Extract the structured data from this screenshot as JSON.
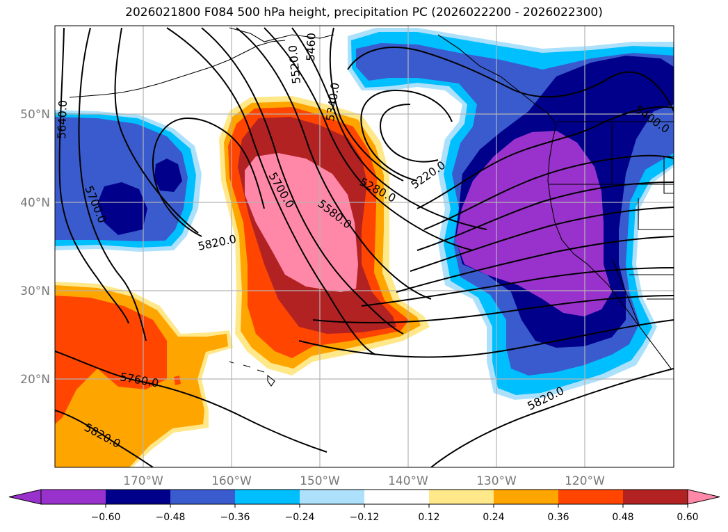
{
  "title": "2026021800 F084 500 hPa height, precipitation PC (2026022200 - 2026022300)",
  "lat_labels": [
    "50°N",
    "40°N",
    "30°N",
    "20°N"
  ],
  "lon_labels": [
    "170°W",
    "160°W",
    "150°W",
    "140°W",
    "130°W",
    "120°W"
  ],
  "contour_labels": [
    "5640.0",
    "5700.0",
    "5820.0",
    "5700.0",
    "5580.0",
    "5280.0",
    "5220.0",
    "5340.0",
    "5460",
    "5520.0",
    "5400.0",
    "5760.0",
    "5820.0",
    "5820.0"
  ],
  "colorbar": {
    "ticks": [
      "−0.60",
      "−0.48",
      "−0.36",
      "−0.24",
      "−0.12",
      "0.12",
      "0.24",
      "0.36",
      "0.48",
      "0.60"
    ],
    "colors": [
      "#9932cc",
      "#00008b",
      "#3a5bcd",
      "#00bfff",
      "#ade1fb",
      "#ffffff",
      "#ffe88a",
      "#ffa500",
      "#ff4500",
      "#b22222",
      "#ff88a8",
      "#ff88a8"
    ]
  },
  "colors": {
    "neg_deep": "#9932cc",
    "neg_dark": "#00008b",
    "neg_mid": "#3a5bcd",
    "neg_light": "#00bfff",
    "neg_pale": "#ade1fb",
    "pos_pale": "#ffe88a",
    "pos_mid": "#ffa500",
    "pos_orange": "#ff4500",
    "pos_red": "#b22222",
    "pos_pink": "#ff88a8"
  }
}
